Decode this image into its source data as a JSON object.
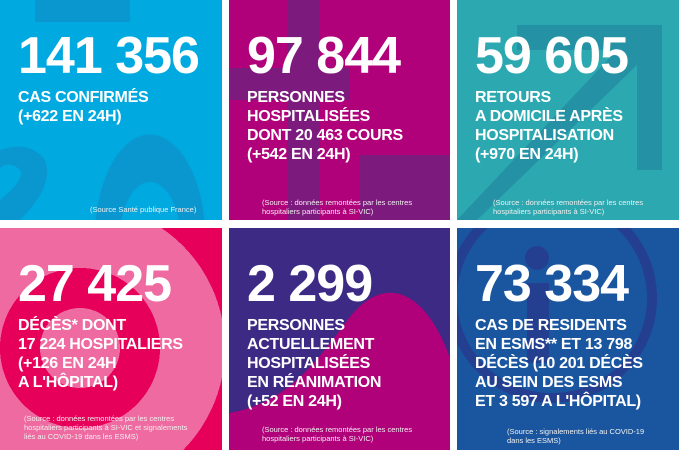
{
  "tiles": [
    {
      "number": "141 356",
      "lines": [
        "CAS CONFIRMÉS",
        "(+622 EN 24H)"
      ],
      "source": [
        "(Source Santé publique France)"
      ],
      "color": "#00a9e0"
    },
    {
      "number": "97 844",
      "lines": [
        "PERSONNES",
        "HOSPITALISÉES",
        "DONT 20 463 COURS",
        "(+542 EN 24H)"
      ],
      "source": [
        "(Source : données remontées par les centres",
        "hospitaliers participants à SI-VIC)"
      ],
      "color": "#b0007a"
    },
    {
      "number": "59 605",
      "lines": [
        "RETOURS",
        "A DOMICILE APRÈS",
        "HOSPITALISATION",
        "(+970 EN 24H)"
      ],
      "source": [
        "(Source : données remontées par les centres",
        "hospitaliers participants à SI-VIC)"
      ],
      "color": "#2ba8b0"
    },
    {
      "number": "27 425",
      "lines": [
        "DÉCÈS* DONT",
        "17 224 HOSPITALIERS",
        "(+126 EN 24H",
        "A L'HÔPITAL)"
      ],
      "source": [
        "(Source : données remontées par les centres",
        "hospitaliers participants à SI-VIC et signalements",
        "liés au COVID-19 dans les ESMS)"
      ],
      "color": "#e6005a"
    },
    {
      "number": "2 299",
      "lines": [
        "PERSONNES",
        "ACTUELLEMENT",
        "HOSPITALISÉES",
        "EN RÉANIMATION",
        "(+52 EN 24H)"
      ],
      "source": [
        "(Source : données remontées par les centres",
        "hospitaliers participants à SI-VIC)"
      ],
      "color": "#3c2a85"
    },
    {
      "number": "73 334",
      "lines": [
        "CAS DE RESIDENTS",
        "EN ESMS** ET 13 798",
        "DÉCÈS (10 201 DÉCÈS",
        "AU SEIN DES ESMS",
        "ET 3 597 A L'HÔPITAL)"
      ],
      "source": [
        "(Source : signalements liés au COVID-19",
        "dans les ESMS)"
      ],
      "color": "#1a56a0"
    }
  ]
}
